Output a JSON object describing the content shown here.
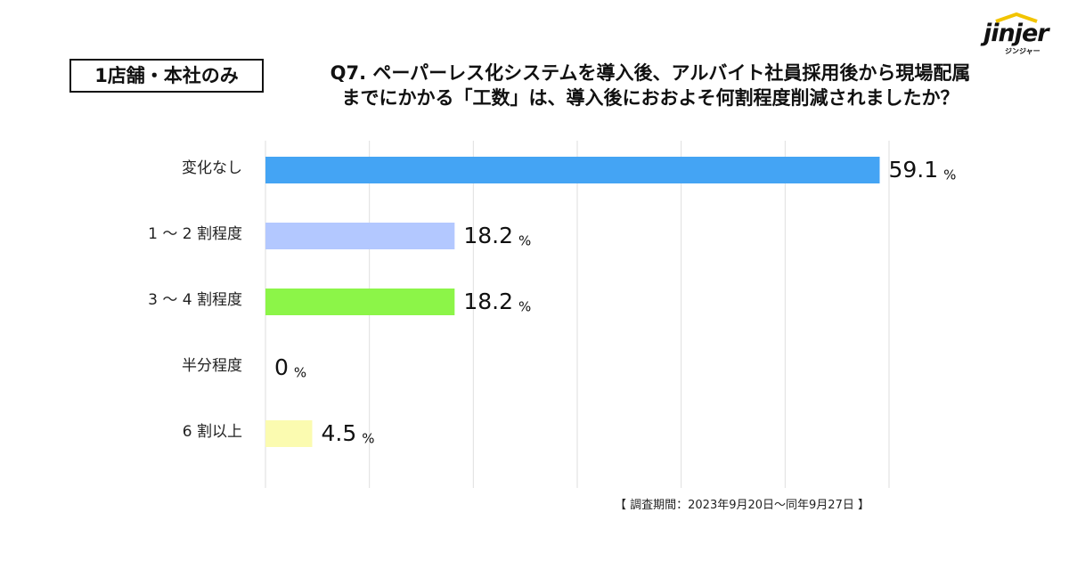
{
  "logo": {
    "word": "jinjer",
    "sub": "ジンジャー"
  },
  "scope_label": "1店舗・本社のみ",
  "question": {
    "line1": "Q7. ペーパーレス化システムを導入後、アルバイト社員採用後から現場配属",
    "line2": "までにかかる「工数」は、導入後におおよそ何割程度削減されましたか？"
  },
  "survey_note": "【 調査期間：2023年9月20日～同年9月27日 】",
  "chart_data": {
    "type": "bar",
    "orientation": "horizontal",
    "categories": [
      "変化なし",
      "1 ～ 2 割程度",
      "3 ～ 4 割程度",
      "半分程度",
      "6 割以上"
    ],
    "values": [
      59.1,
      18.2,
      18.2,
      0,
      4.5
    ],
    "value_labels": [
      "59.1",
      "18.2",
      "18.2",
      "0",
      "4.5"
    ],
    "unit": "%",
    "colors": [
      "#44a4f4",
      "#b3c8ff",
      "#8cf548",
      "#cccccc",
      "#fbfbb0"
    ],
    "xlim": [
      0,
      60
    ],
    "grid": true
  }
}
